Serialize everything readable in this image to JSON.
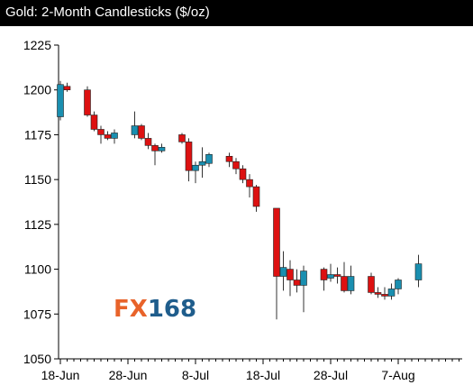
{
  "title": "Gold: 2-Month Candlesticks ($/oz)",
  "logo": {
    "part1": "FX",
    "part2": "168",
    "color1": "#e8632a",
    "color2": "#1f5d8c"
  },
  "colors": {
    "up": "#1a8fb0",
    "down": "#dd1111",
    "wick": "#333333",
    "background": "#ffffff",
    "title_bar": "#000000"
  },
  "chart_data": {
    "type": "candlestick",
    "title": "Gold: 2-Month Candlesticks ($/oz)",
    "xlabel": "",
    "ylabel": "",
    "ylim": [
      1050,
      1225
    ],
    "yticks": [
      1050,
      1075,
      1100,
      1125,
      1150,
      1175,
      1200,
      1225
    ],
    "xlim": [
      0,
      60
    ],
    "xticks": [
      {
        "label": "18-Jun",
        "x": 0
      },
      {
        "label": "28-Jun",
        "x": 10
      },
      {
        "label": "8-Jul",
        "x": 20
      },
      {
        "label": "18-Jul",
        "x": 30
      },
      {
        "label": "28-Jul",
        "x": 40
      },
      {
        "label": "7-Aug",
        "x": 50
      }
    ],
    "candles": [
      {
        "x": 0,
        "open": 1185,
        "high": 1205,
        "low": 1183,
        "close": 1203
      },
      {
        "x": 1,
        "open": 1202,
        "high": 1204,
        "low": 1199,
        "close": 1200
      },
      {
        "x": 4,
        "open": 1200,
        "high": 1202,
        "low": 1185,
        "close": 1186
      },
      {
        "x": 5,
        "open": 1186,
        "high": 1188,
        "low": 1177,
        "close": 1178
      },
      {
        "x": 6,
        "open": 1178,
        "high": 1180,
        "low": 1170,
        "close": 1175
      },
      {
        "x": 7,
        "open": 1175,
        "high": 1177,
        "low": 1172,
        "close": 1173
      },
      {
        "x": 8,
        "open": 1173,
        "high": 1178,
        "low": 1170,
        "close": 1176
      },
      {
        "x": 11,
        "open": 1175,
        "high": 1188,
        "low": 1173,
        "close": 1180
      },
      {
        "x": 12,
        "open": 1180,
        "high": 1181,
        "low": 1172,
        "close": 1173
      },
      {
        "x": 13,
        "open": 1173,
        "high": 1176,
        "low": 1167,
        "close": 1169
      },
      {
        "x": 14,
        "open": 1169,
        "high": 1170,
        "low": 1158,
        "close": 1166
      },
      {
        "x": 15,
        "open": 1166,
        "high": 1170,
        "low": 1165,
        "close": 1168
      },
      {
        "x": 18,
        "open": 1175,
        "high": 1176,
        "low": 1170,
        "close": 1171
      },
      {
        "x": 19,
        "open": 1171,
        "high": 1173,
        "low": 1149,
        "close": 1155
      },
      {
        "x": 20,
        "open": 1155,
        "high": 1160,
        "low": 1148,
        "close": 1158
      },
      {
        "x": 21,
        "open": 1158,
        "high": 1168,
        "low": 1151,
        "close": 1160
      },
      {
        "x": 22,
        "open": 1159,
        "high": 1165,
        "low": 1157,
        "close": 1164
      },
      {
        "x": 25,
        "open": 1163,
        "high": 1165,
        "low": 1157,
        "close": 1160
      },
      {
        "x": 26,
        "open": 1160,
        "high": 1162,
        "low": 1153,
        "close": 1156
      },
      {
        "x": 27,
        "open": 1156,
        "high": 1158,
        "low": 1148,
        "close": 1150
      },
      {
        "x": 28,
        "open": 1150,
        "high": 1153,
        "low": 1140,
        "close": 1146
      },
      {
        "x": 29,
        "open": 1146,
        "high": 1147,
        "low": 1132,
        "close": 1135
      },
      {
        "x": 32,
        "open": 1134,
        "high": 1134,
        "low": 1072,
        "close": 1096
      },
      {
        "x": 33,
        "open": 1096,
        "high": 1110,
        "low": 1088,
        "close": 1101
      },
      {
        "x": 34,
        "open": 1100,
        "high": 1105,
        "low": 1085,
        "close": 1094
      },
      {
        "x": 35,
        "open": 1094,
        "high": 1100,
        "low": 1087,
        "close": 1091
      },
      {
        "x": 36,
        "open": 1091,
        "high": 1102,
        "low": 1076,
        "close": 1099
      },
      {
        "x": 39,
        "open": 1100,
        "high": 1101,
        "low": 1088,
        "close": 1094
      },
      {
        "x": 40,
        "open": 1095,
        "high": 1103,
        "low": 1093,
        "close": 1097
      },
      {
        "x": 41,
        "open": 1097,
        "high": 1101,
        "low": 1092,
        "close": 1096
      },
      {
        "x": 42,
        "open": 1096,
        "high": 1104,
        "low": 1087,
        "close": 1088
      },
      {
        "x": 43,
        "open": 1088,
        "high": 1102,
        "low": 1086,
        "close": 1096
      },
      {
        "x": 46,
        "open": 1096,
        "high": 1098,
        "low": 1086,
        "close": 1087
      },
      {
        "x": 47,
        "open": 1087,
        "high": 1090,
        "low": 1084,
        "close": 1086
      },
      {
        "x": 48,
        "open": 1086,
        "high": 1090,
        "low": 1083,
        "close": 1085
      },
      {
        "x": 49,
        "open": 1085,
        "high": 1092,
        "low": 1083,
        "close": 1089
      },
      {
        "x": 50,
        "open": 1089,
        "high": 1095,
        "low": 1086,
        "close": 1094
      },
      {
        "x": 53,
        "open": 1094,
        "high": 1108,
        "low": 1090,
        "close": 1103
      }
    ]
  }
}
